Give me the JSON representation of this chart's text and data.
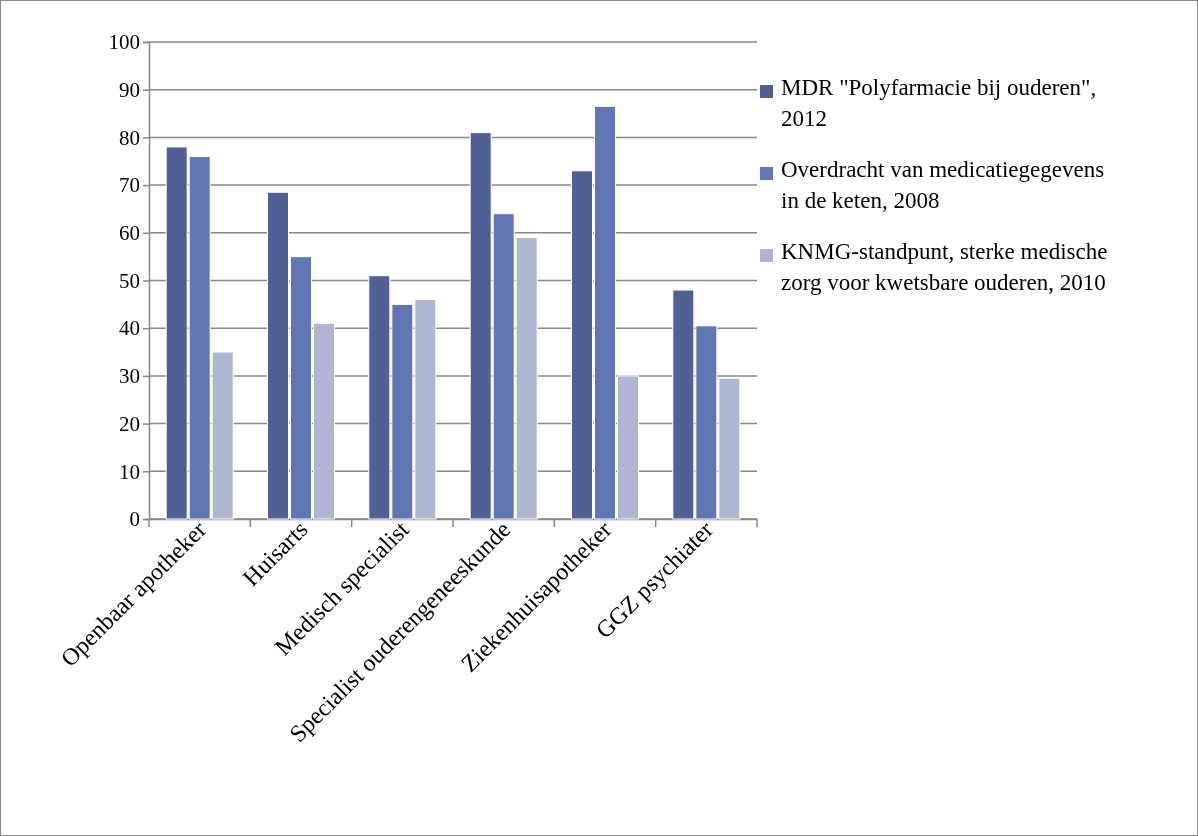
{
  "chart_data": {
    "type": "bar",
    "categories": [
      "Openbaar apotheker",
      "Huisarts",
      "Medisch specialist",
      "Specialist ouderengeneeskunde",
      "Ziekenhuisapotheker",
      "GGZ psychiater"
    ],
    "series": [
      {
        "name": "MDR \"Polyfarmacie bij ouderen\", 2012",
        "color": "#4f6194",
        "values": [
          78,
          68.5,
          51,
          81,
          73,
          48
        ]
      },
      {
        "name": "Overdracht van medicatiegegevens in de keten, 2008",
        "color": "#6177b4",
        "values": [
          76,
          55,
          45,
          64,
          86.5,
          40.5
        ]
      },
      {
        "name": "KNMG-standpunt, sterke medische zorg voor kwetsbare ouderen, 2010",
        "color": "#aeb6d2",
        "values": [
          35,
          41,
          46,
          59,
          30,
          29.5
        ]
      }
    ],
    "ylim": [
      0,
      100
    ],
    "yticks": [
      0,
      10,
      20,
      30,
      40,
      50,
      60,
      70,
      80,
      90,
      100
    ],
    "grid": "y",
    "legend": "right"
  }
}
